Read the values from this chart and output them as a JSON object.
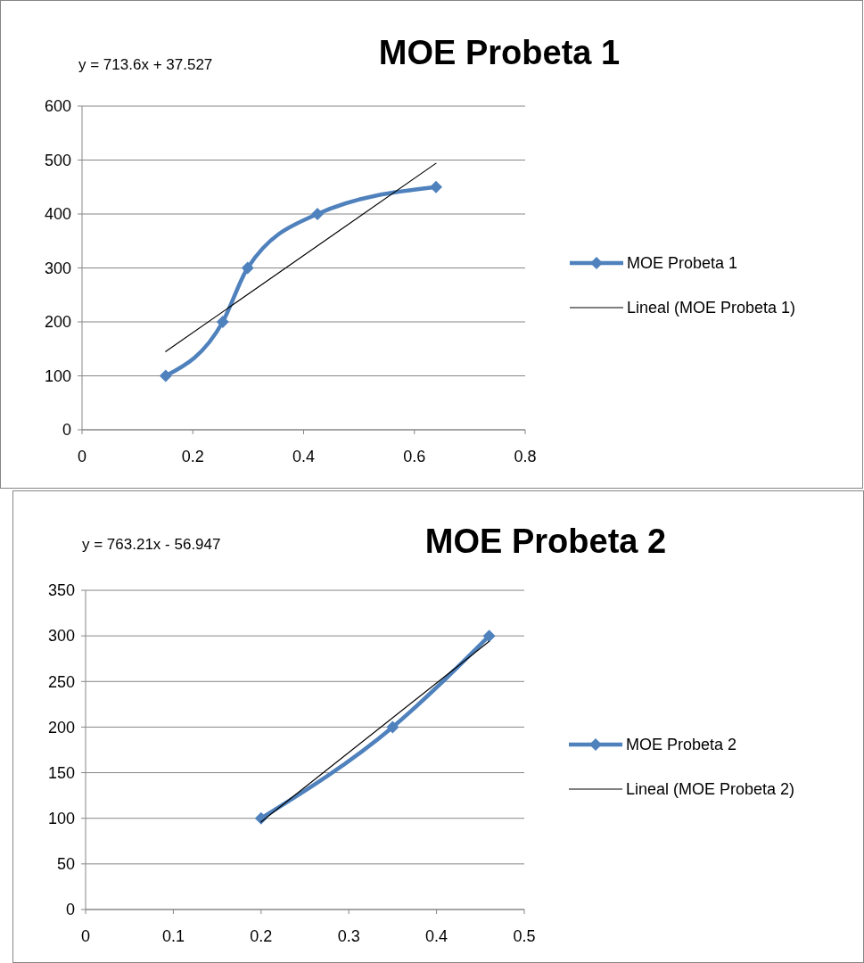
{
  "chart_data": [
    {
      "type": "line",
      "title": "MOE Probeta 1",
      "annotations": [
        "y = 713.6x + 37.527"
      ],
      "xlim": [
        0,
        0.8
      ],
      "xticks": [
        0,
        0.2,
        0.4,
        0.6,
        0.8
      ],
      "ylim": [
        0,
        600
      ],
      "yticks": [
        0,
        100,
        200,
        300,
        400,
        500,
        600
      ],
      "grid": "y",
      "legend": "right",
      "series": [
        {
          "name": "MOE Probeta 1",
          "color": "#4f81bd",
          "marker": "diamond",
          "x": [
            0.151,
            0.254,
            0.299,
            0.425,
            0.639
          ],
          "values": [
            100,
            200,
            300,
            400,
            450
          ]
        },
        {
          "name": "Lineal (MOE Probeta 1)",
          "color": "#000000",
          "marker": "none",
          "x": [
            0.151,
            0.639
          ],
          "values": [
            145,
            494
          ]
        }
      ]
    },
    {
      "type": "line",
      "title": "MOE Probeta 2",
      "annotations": [
        "y = 763.21x - 56.947"
      ],
      "xlim": [
        0,
        0.5
      ],
      "xticks": [
        0,
        0.1,
        0.2,
        0.3,
        0.4,
        0.5
      ],
      "ylim": [
        0,
        350
      ],
      "yticks": [
        0,
        50,
        100,
        150,
        200,
        250,
        300,
        350
      ],
      "grid": "y",
      "legend": "right",
      "series": [
        {
          "name": "MOE Probeta 2",
          "color": "#4f81bd",
          "marker": "diamond",
          "x": [
            0.2,
            0.35,
            0.46
          ],
          "values": [
            100,
            200,
            300
          ]
        },
        {
          "name": "Lineal (MOE Probeta 2)",
          "color": "#000000",
          "marker": "none",
          "x": [
            0.2,
            0.46
          ],
          "values": [
            96,
            294
          ]
        }
      ]
    }
  ]
}
